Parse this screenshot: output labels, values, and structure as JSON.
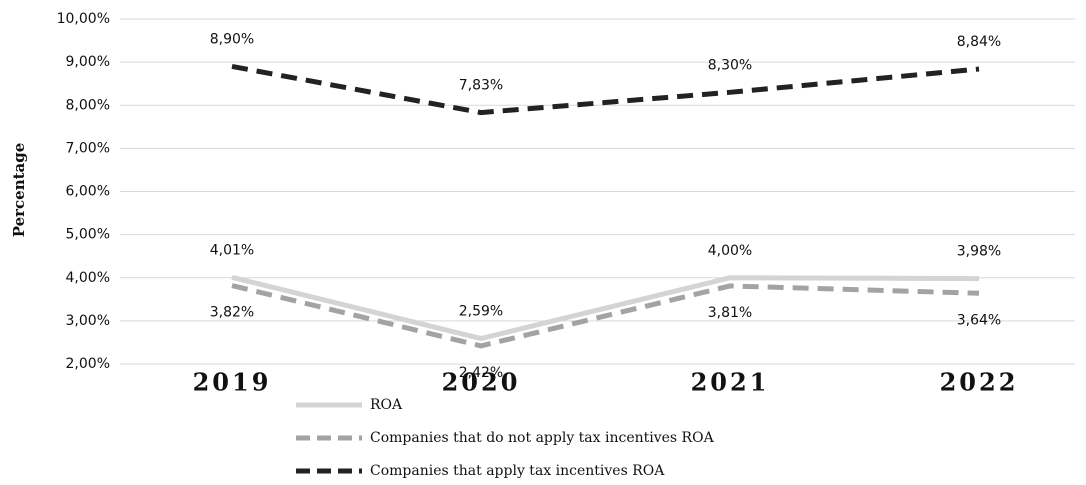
{
  "chart_data": {
    "type": "line",
    "y_label": "Percentage",
    "categories": [
      "2019",
      "2020",
      "2021",
      "2022"
    ],
    "series": [
      {
        "name": "ROA",
        "color": "#d4d4d4",
        "dashed": false,
        "label_side": "above",
        "values": [
          4.01,
          2.59,
          4.0,
          3.98
        ],
        "value_labels": [
          "4,01%",
          "2,59%",
          "4,00%",
          "3,98%"
        ]
      },
      {
        "name": "Companies that do not apply tax incentives ROA",
        "color": "#a3a3a3",
        "dashed": true,
        "label_side": "below",
        "values": [
          3.82,
          2.42,
          3.81,
          3.64
        ],
        "value_labels": [
          "3,82%",
          "2,42%",
          "3,81%",
          "3,64%"
        ]
      },
      {
        "name": "Companies that apply tax incentives ROA",
        "color": "#222222",
        "dashed": true,
        "label_side": "above",
        "values": [
          8.9,
          7.83,
          8.3,
          8.84
        ],
        "value_labels": [
          "8,90%",
          "7,83%",
          "8,30%",
          "8,84%"
        ]
      }
    ],
    "ylim": [
      2,
      10
    ],
    "yticks": [
      {
        "value": 2,
        "label": "2,00%"
      },
      {
        "value": 3,
        "label": "3,00%"
      },
      {
        "value": 4,
        "label": "4,00%"
      },
      {
        "value": 5,
        "label": "5,00%"
      },
      {
        "value": 6,
        "label": "6,00%"
      },
      {
        "value": 7,
        "label": "7,00%"
      },
      {
        "value": 8,
        "label": "8,00%"
      },
      {
        "value": 9,
        "label": "9,00%"
      },
      {
        "value": 10,
        "label": "10,00%"
      }
    ],
    "grid": true,
    "legend": "bottom"
  }
}
